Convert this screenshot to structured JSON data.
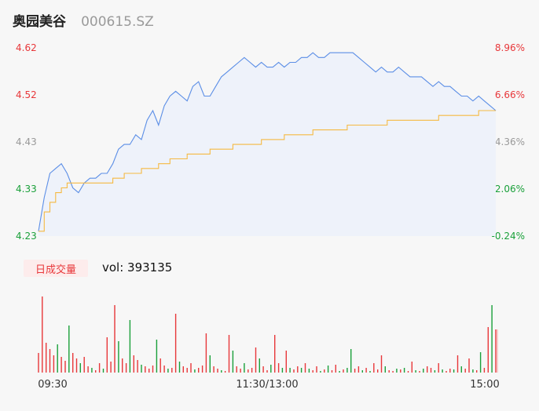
{
  "header": {
    "stock_name": "奥园美谷",
    "stock_code": "000615.SZ"
  },
  "colors": {
    "up": "#e8373a",
    "down": "#1aa03a",
    "flat": "#999999",
    "price_line": "#5b8ee6",
    "avg_line": "#f5b942",
    "area_fill": "#eef2fa"
  },
  "volume_panel": {
    "tab_label": "日成交量",
    "vol_label": "vol: 393135"
  },
  "chart_data": {
    "type": "line",
    "title": "",
    "x_ticks": [
      "09:30",
      "11:30/13:00",
      "15:00"
    ],
    "price_axis": {
      "ylim": [
        4.23,
        4.62
      ],
      "ticks": [
        "4.62",
        "4.52",
        "4.43",
        "4.33",
        "4.23"
      ],
      "tick_colors": [
        "up",
        "up",
        "flat",
        "down",
        "down"
      ]
    },
    "pct_axis": {
      "ticks": [
        "8.96%",
        "6.66%",
        "4.36%",
        "2.06%",
        "-0.24%"
      ],
      "tick_colors": [
        "up",
        "up",
        "flat",
        "down",
        "down"
      ]
    },
    "series": [
      {
        "key": "price",
        "x": [
          0,
          3,
          6,
          9,
          12,
          15,
          18,
          21,
          24,
          27,
          30,
          33,
          36,
          39,
          42,
          45,
          48,
          51,
          54,
          57,
          60,
          63,
          66,
          69,
          72,
          75,
          78,
          81,
          84,
          87,
          90,
          93,
          96,
          99,
          102,
          105,
          108,
          111,
          114,
          117,
          120,
          123,
          126,
          129,
          132,
          135,
          138,
          141,
          144,
          147,
          150,
          153,
          156,
          159,
          162,
          165,
          168,
          171,
          174,
          177,
          180,
          183,
          186,
          189,
          192,
          195,
          198,
          201,
          204,
          207,
          210,
          213,
          216,
          219,
          222,
          225,
          228,
          231,
          234,
          237,
          240
        ],
        "y": [
          4.24,
          4.31,
          4.36,
          4.37,
          4.38,
          4.36,
          4.33,
          4.32,
          4.34,
          4.35,
          4.35,
          4.36,
          4.36,
          4.38,
          4.41,
          4.42,
          4.42,
          4.44,
          4.43,
          4.47,
          4.49,
          4.46,
          4.5,
          4.52,
          4.53,
          4.52,
          4.51,
          4.54,
          4.55,
          4.52,
          4.52,
          4.54,
          4.56,
          4.57,
          4.58,
          4.59,
          4.6,
          4.59,
          4.58,
          4.59,
          4.58,
          4.58,
          4.59,
          4.58,
          4.59,
          4.59,
          4.6,
          4.6,
          4.61,
          4.6,
          4.6,
          4.61,
          4.61,
          4.61,
          4.61,
          4.61,
          4.6,
          4.59,
          4.58,
          4.57,
          4.58,
          4.57,
          4.57,
          4.58,
          4.57,
          4.56,
          4.56,
          4.56,
          4.55,
          4.54,
          4.55,
          4.54,
          4.54,
          4.53,
          4.52,
          4.52,
          4.51,
          4.52,
          4.51,
          4.5,
          4.49
        ]
      },
      {
        "key": "average",
        "x": [
          0,
          3,
          6,
          9,
          12,
          15,
          18,
          21,
          24,
          27,
          30,
          33,
          36,
          39,
          42,
          45,
          48,
          51,
          54,
          57,
          60,
          63,
          66,
          69,
          72,
          75,
          78,
          81,
          84,
          87,
          90,
          93,
          96,
          99,
          102,
          105,
          108,
          111,
          114,
          117,
          120,
          123,
          126,
          129,
          132,
          135,
          138,
          141,
          144,
          147,
          150,
          153,
          156,
          159,
          162,
          165,
          168,
          171,
          174,
          177,
          180,
          183,
          186,
          189,
          192,
          195,
          198,
          201,
          204,
          207,
          210,
          213,
          216,
          219,
          222,
          225,
          228,
          231,
          234,
          237,
          240
        ],
        "y": [
          4.24,
          4.28,
          4.3,
          4.32,
          4.33,
          4.34,
          4.34,
          4.34,
          4.34,
          4.34,
          4.34,
          4.34,
          4.34,
          4.35,
          4.35,
          4.36,
          4.36,
          4.36,
          4.37,
          4.37,
          4.37,
          4.38,
          4.38,
          4.39,
          4.39,
          4.39,
          4.4,
          4.4,
          4.4,
          4.4,
          4.41,
          4.41,
          4.41,
          4.41,
          4.42,
          4.42,
          4.42,
          4.42,
          4.42,
          4.43,
          4.43,
          4.43,
          4.43,
          4.44,
          4.44,
          4.44,
          4.44,
          4.44,
          4.45,
          4.45,
          4.45,
          4.45,
          4.45,
          4.45,
          4.46,
          4.46,
          4.46,
          4.46,
          4.46,
          4.46,
          4.46,
          4.47,
          4.47,
          4.47,
          4.47,
          4.47,
          4.47,
          4.47,
          4.47,
          4.47,
          4.48,
          4.48,
          4.48,
          4.48,
          4.48,
          4.48,
          4.48,
          4.49,
          4.49,
          4.49,
          4.49
        ]
      }
    ],
    "volume": {
      "x": [
        0,
        2,
        4,
        6,
        8,
        10,
        12,
        14,
        16,
        18,
        20,
        22,
        24,
        26,
        28,
        30,
        32,
        34,
        36,
        38,
        40,
        42,
        44,
        46,
        48,
        50,
        52,
        54,
        56,
        58,
        60,
        62,
        64,
        66,
        68,
        70,
        72,
        74,
        76,
        78,
        80,
        82,
        84,
        86,
        88,
        90,
        92,
        94,
        96,
        98,
        100,
        102,
        104,
        106,
        108,
        110,
        112,
        114,
        116,
        118,
        120,
        122,
        124,
        126,
        128,
        130,
        132,
        134,
        136,
        138,
        140,
        142,
        144,
        146,
        148,
        150,
        152,
        154,
        156,
        158,
        160,
        162,
        164,
        166,
        168,
        170,
        172,
        174,
        176,
        178,
        180,
        182,
        184,
        186,
        188,
        190,
        192,
        194,
        196,
        198,
        200,
        202,
        204,
        206,
        208,
        210,
        212,
        214,
        216,
        218,
        220,
        222,
        224,
        226,
        228,
        230,
        232,
        234,
        236,
        238,
        240
      ],
      "values": [
        25000,
        97000,
        38000,
        30000,
        22000,
        36000,
        20000,
        15000,
        60000,
        25000,
        18000,
        12000,
        20000,
        8000,
        6000,
        3000,
        12000,
        5000,
        45000,
        14000,
        86000,
        40000,
        18000,
        12000,
        67000,
        22000,
        16000,
        10000,
        8000,
        5000,
        9000,
        42000,
        18000,
        9000,
        5000,
        6000,
        75000,
        14000,
        8000,
        6000,
        12000,
        4000,
        6000,
        9000,
        50000,
        22000,
        8000,
        5000,
        3000,
        2000,
        48000,
        28000,
        8000,
        5000,
        12000,
        4000,
        6000,
        32000,
        18000,
        8000,
        3000,
        10000,
        48000,
        12000,
        6000,
        28000,
        6000,
        4000,
        8000,
        6000,
        12000,
        5000,
        3000,
        8000,
        2000,
        4000,
        9000,
        3000,
        10000,
        2000,
        4000,
        6000,
        30000,
        5000,
        8000,
        3000,
        6000,
        2000,
        12000,
        4000,
        22000,
        8000,
        3000,
        2000,
        5000,
        4000,
        6000,
        2000,
        14000,
        3000,
        2000,
        5000,
        8000,
        6000,
        3000,
        12000,
        4000,
        2000,
        5000,
        4000,
        22000,
        8000,
        5000,
        18000,
        4000,
        3000,
        26000,
        6000,
        58000,
        86000,
        55000
      ],
      "up": [
        true,
        true,
        true,
        true,
        true,
        false,
        true,
        true,
        false,
        true,
        true,
        false,
        true,
        true,
        false,
        true,
        true,
        false,
        true,
        true,
        true,
        false,
        true,
        true,
        false,
        true,
        true,
        false,
        true,
        true,
        true,
        false,
        true,
        true,
        false,
        true,
        true,
        false,
        true,
        true,
        true,
        false,
        true,
        true,
        true,
        false,
        true,
        true,
        false,
        true,
        true,
        false,
        true,
        true,
        false,
        true,
        true,
        true,
        false,
        true,
        true,
        false,
        true,
        true,
        false,
        true,
        false,
        true,
        true,
        false,
        true,
        false,
        true,
        true,
        false,
        true,
        false,
        true,
        true,
        false,
        true,
        false,
        false,
        true,
        true,
        false,
        true,
        false,
        true,
        true,
        true,
        false,
        true,
        true,
        false,
        true,
        false,
        true,
        true,
        false,
        true,
        false,
        true,
        true,
        false,
        true,
        false,
        true,
        true,
        false,
        true,
        false,
        true,
        true,
        false,
        true,
        false,
        true,
        true,
        false,
        true
      ]
    }
  }
}
